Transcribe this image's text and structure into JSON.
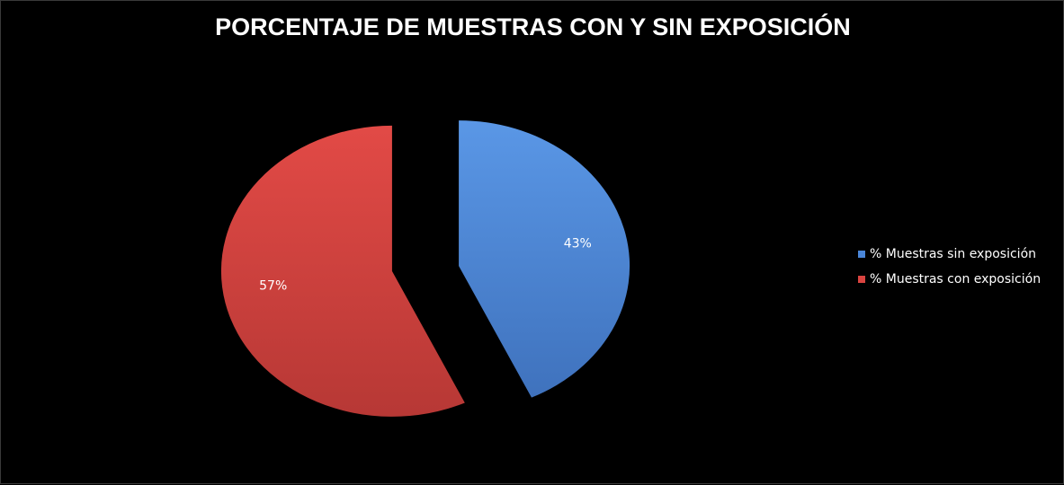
{
  "chart_data": {
    "type": "pie",
    "title": "PORCENTAJE DE MUESTRAS CON Y SIN EXPOSICIÓN",
    "exploded": true,
    "slices": [
      {
        "name": "% Muestras sin exposición",
        "value": 43,
        "label": "43%",
        "color": "#4a86d8"
      },
      {
        "name": "% Muestras con exposición",
        "value": 57,
        "label": "57%",
        "color": "#d94440"
      }
    ],
    "legend_position": "right"
  }
}
